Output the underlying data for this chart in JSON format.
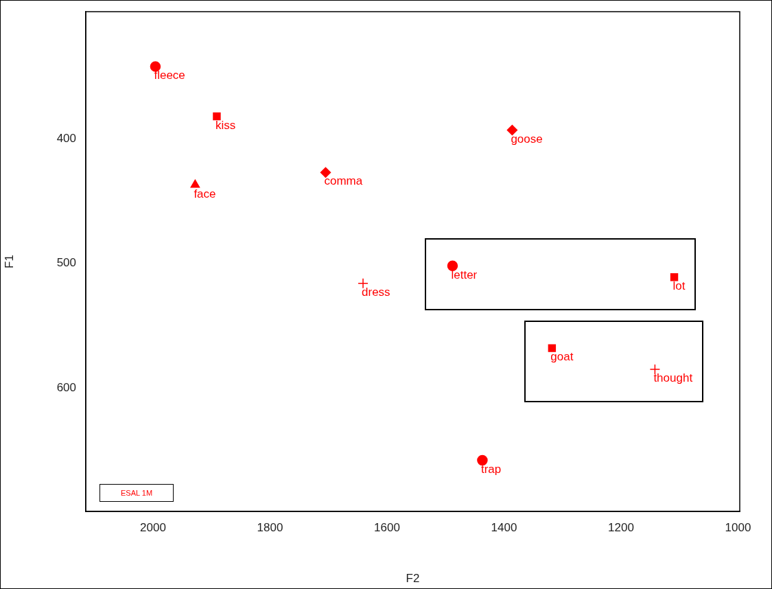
{
  "chart_data": {
    "type": "scatter",
    "xlabel": "F2",
    "ylabel": "F1",
    "legend_title": "ESAL 1M",
    "legend": "bottom left",
    "xlim": [
      2115,
      997
    ],
    "ylim": [
      699,
      298
    ],
    "xticks": [
      2000,
      1800,
      1600,
      1400,
      1200,
      1000
    ],
    "yticks": [
      400,
      500,
      600
    ],
    "grid": false,
    "series": [
      {
        "name": "fleece",
        "color": "#ff0000",
        "marker": "circle",
        "x": [
          1996
        ],
        "values": [
          342
        ]
      },
      {
        "name": "kiss",
        "color": "#ff0000",
        "marker": "square",
        "x": [
          1891
        ],
        "values": [
          382
        ]
      },
      {
        "name": "goose",
        "color": "#ff0000",
        "marker": "diamond",
        "x": [
          1386
        ],
        "values": [
          393
        ]
      },
      {
        "name": "comma",
        "color": "#ff0000",
        "marker": "diamond",
        "x": [
          1705
        ],
        "values": [
          427
        ]
      },
      {
        "name": "face",
        "color": "#ff0000",
        "marker": "triangle",
        "x": [
          1928
        ],
        "values": [
          437
        ]
      },
      {
        "name": "letter",
        "color": "#ff0000",
        "marker": "circle",
        "x": [
          1488
        ],
        "values": [
          502
        ]
      },
      {
        "name": "lot",
        "color": "#ff0000",
        "marker": "square",
        "x": [
          1109
        ],
        "values": [
          511
        ]
      },
      {
        "name": "dress",
        "color": "#ff0000",
        "marker": "cross",
        "x": [
          1641
        ],
        "values": [
          516
        ]
      },
      {
        "name": "goat",
        "color": "#ff0000",
        "marker": "square",
        "x": [
          1318
        ],
        "values": [
          568
        ]
      },
      {
        "name": "thought",
        "color": "#ff0000",
        "marker": "cross",
        "x": [
          1142
        ],
        "values": [
          585
        ]
      },
      {
        "name": "trap",
        "color": "#ff0000",
        "marker": "circle",
        "x": [
          1437
        ],
        "values": [
          658
        ]
      }
    ]
  }
}
